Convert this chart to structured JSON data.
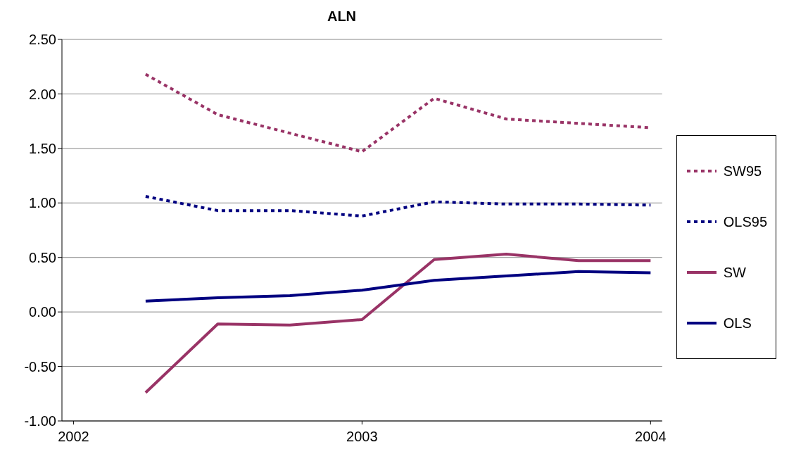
{
  "chart_data": {
    "type": "line",
    "title": "ALN",
    "x": [
      2002.25,
      2002.5,
      2002.75,
      2003,
      2003.25,
      2003.5,
      2003.75,
      2004
    ],
    "xlim": [
      2001.96,
      2004.04
    ],
    "xticks": [
      2002,
      2003,
      2004
    ],
    "ylim": [
      -1,
      2.5
    ],
    "yticks": [
      {
        "value": -1,
        "label": "-1.00"
      },
      {
        "value": -0.5,
        "label": "-0.50"
      },
      {
        "value": 0,
        "label": "0.00"
      },
      {
        "value": 0.5,
        "label": "0.50"
      },
      {
        "value": 1,
        "label": "1.00"
      },
      {
        "value": 1.5,
        "label": "1.50"
      },
      {
        "value": 2,
        "label": "2.00"
      },
      {
        "value": 2.5,
        "label": "2.50"
      }
    ],
    "grid": "y",
    "legend": "right",
    "marker": "none",
    "series": [
      {
        "name": "SW95",
        "color": "#993366",
        "line_style": "dotted",
        "values": [
          2.18,
          1.81,
          1.64,
          1.47,
          1.96,
          1.77,
          1.73,
          1.69
        ]
      },
      {
        "name": "OLS95",
        "color": "#000080",
        "line_style": "dotted",
        "values": [
          1.06,
          0.93,
          0.93,
          0.88,
          1.01,
          0.99,
          0.99,
          0.98
        ]
      },
      {
        "name": "SW",
        "color": "#993366",
        "line_style": "solid",
        "values": [
          -0.74,
          -0.11,
          -0.12,
          -0.07,
          0.48,
          0.53,
          0.47,
          0.47
        ]
      },
      {
        "name": "OLS",
        "color": "#000080",
        "line_style": "solid",
        "values": [
          0.1,
          0.13,
          0.15,
          0.2,
          0.29,
          0.33,
          0.37,
          0.36
        ]
      }
    ]
  }
}
